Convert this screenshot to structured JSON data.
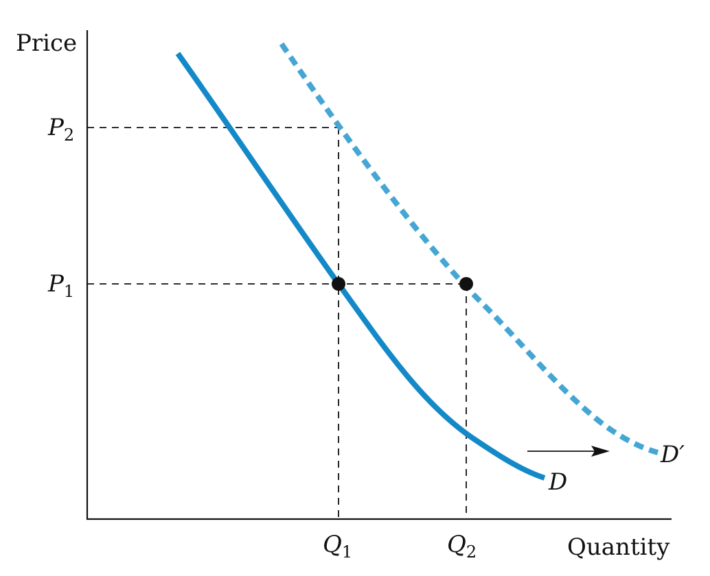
{
  "labels": {
    "y_axis": "Price",
    "x_axis": "Quantity",
    "p1_main": "P",
    "p1_sub": "1",
    "p2_main": "P",
    "p2_sub": "2",
    "q1_main": "Q",
    "q1_sub": "1",
    "q2_main": "Q",
    "q2_sub": "2",
    "curve_d": "D",
    "curve_dprime": "D′"
  },
  "colors": {
    "demand_curve": "#1489c8",
    "shifted_demand_curve": "#45a6d4",
    "ink": "#111111"
  }
}
